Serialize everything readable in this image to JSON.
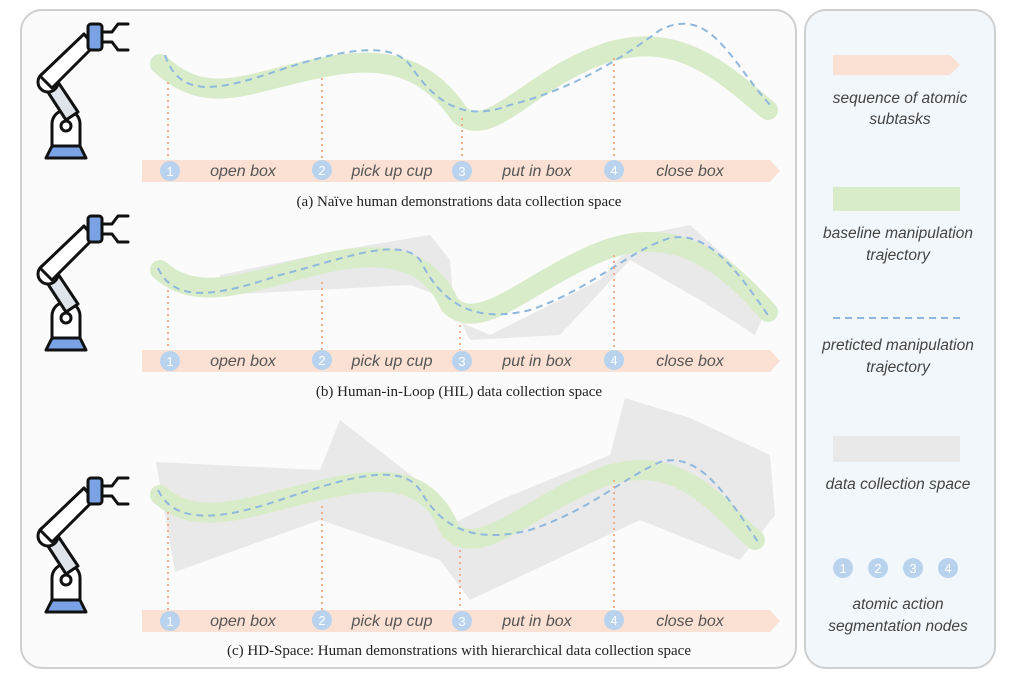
{
  "panels": [
    {
      "caption": "(a) Naïve human demonstrations data collection space",
      "steps": [
        "open box",
        "pick up cup",
        "put in box",
        "close box"
      ],
      "nodes": [
        "1",
        "2",
        "3",
        "4"
      ]
    },
    {
      "caption": "(b) Human-in-Loop (HIL) data collection space",
      "steps": [
        "open box",
        "pick up cup",
        "put in box",
        "close box"
      ],
      "nodes": [
        "1",
        "2",
        "3",
        "4"
      ]
    },
    {
      "caption": "(c) HD-Space: Human demonstrations with hierarchical data collection space",
      "steps": [
        "open box",
        "pick up cup",
        "put in box",
        "close box"
      ],
      "nodes": [
        "1",
        "2",
        "3",
        "4"
      ]
    }
  ],
  "legend": {
    "subtasks": [
      "sequence of atomic",
      "subtasks"
    ],
    "baseline": [
      "baseline manipulation",
      "trajectory"
    ],
    "predicted": [
      "preticted manipulation",
      "trajectory"
    ],
    "space": [
      "data collection space"
    ],
    "nodes_numbers": [
      "1",
      "2",
      "3",
      "4"
    ],
    "nodes_label": [
      "atomic action",
      "segmentation nodes"
    ]
  },
  "colors": {
    "subtask_arrow": "#fbe1d3",
    "baseline": "#d9ecc9",
    "predicted": "#8fb8dc",
    "space": "#e9e9e9",
    "node": "#b9d3ee",
    "robot_base": "#7aa3e6"
  }
}
